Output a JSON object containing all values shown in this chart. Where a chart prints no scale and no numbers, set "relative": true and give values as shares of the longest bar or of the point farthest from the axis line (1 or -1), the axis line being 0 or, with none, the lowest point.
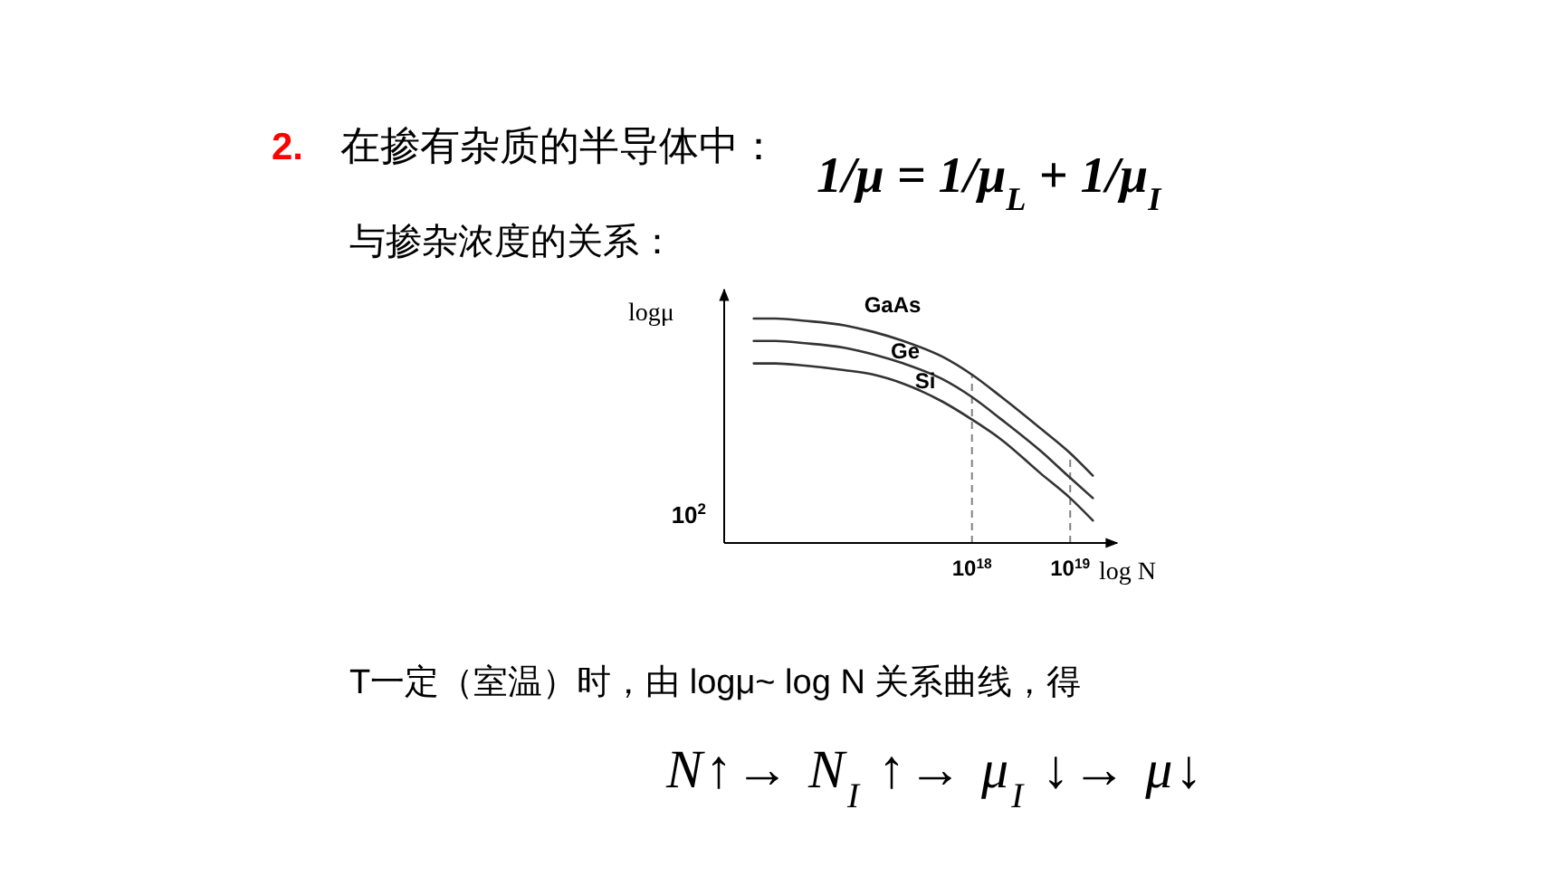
{
  "chart_data": {
    "type": "line",
    "title": "在掺有杂质的半导体中：",
    "subtitle": "与掺杂浓度的关系：",
    "xlabel": "log N",
    "ylabel": "logμ",
    "relative": true,
    "log": "x",
    "xlim": [
      3000000000000000.0,
      3e+19
    ],
    "xticks": [
      {
        "value": 1e+18,
        "label": "10$^{18}$"
      },
      {
        "value": 1e+19,
        "label": "10$^{19}$"
      }
    ],
    "x": [
      6000000000000000.0,
      1e+16,
      2e+16,
      5e+16,
      1e+17,
      2e+17,
      5e+17,
      1e+18,
      2e+18,
      5e+18,
      1e+19,
      1.7e+19
    ],
    "series": [
      {
        "name": "GaAs",
        "color": "#333333",
        "values": [
          1.0,
          1.0,
          0.99,
          0.97,
          0.94,
          0.9,
          0.83,
          0.75,
          0.65,
          0.51,
          0.4,
          0.3
        ]
      },
      {
        "name": "Ge",
        "color": "#333333",
        "values": [
          0.9,
          0.9,
          0.89,
          0.87,
          0.84,
          0.8,
          0.73,
          0.65,
          0.55,
          0.41,
          0.29,
          0.2
        ]
      },
      {
        "name": "Si",
        "color": "#333333",
        "values": [
          0.8,
          0.8,
          0.79,
          0.77,
          0.75,
          0.71,
          0.63,
          0.55,
          0.46,
          0.31,
          0.2,
          0.1
        ]
      }
    ],
    "ref_lines": [
      {
        "axis": "x",
        "value": 1e+18,
        "line_style": "dashed",
        "color": "#808080"
      },
      {
        "axis": "x",
        "value": 1e+19,
        "line_style": "dashed",
        "color": "#808080"
      }
    ],
    "annotations": [
      "2.",
      "1/μ = 1/μ$_{L}$ + 1/μ$_{I}$",
      "10$^{2}$",
      "T一定（室温）时，由 logμ~ log N 关系曲线，得",
      "N↑→ N$_{I}$ ↑→ μ$_{I}$ ↓→ μ↓"
    ]
  }
}
